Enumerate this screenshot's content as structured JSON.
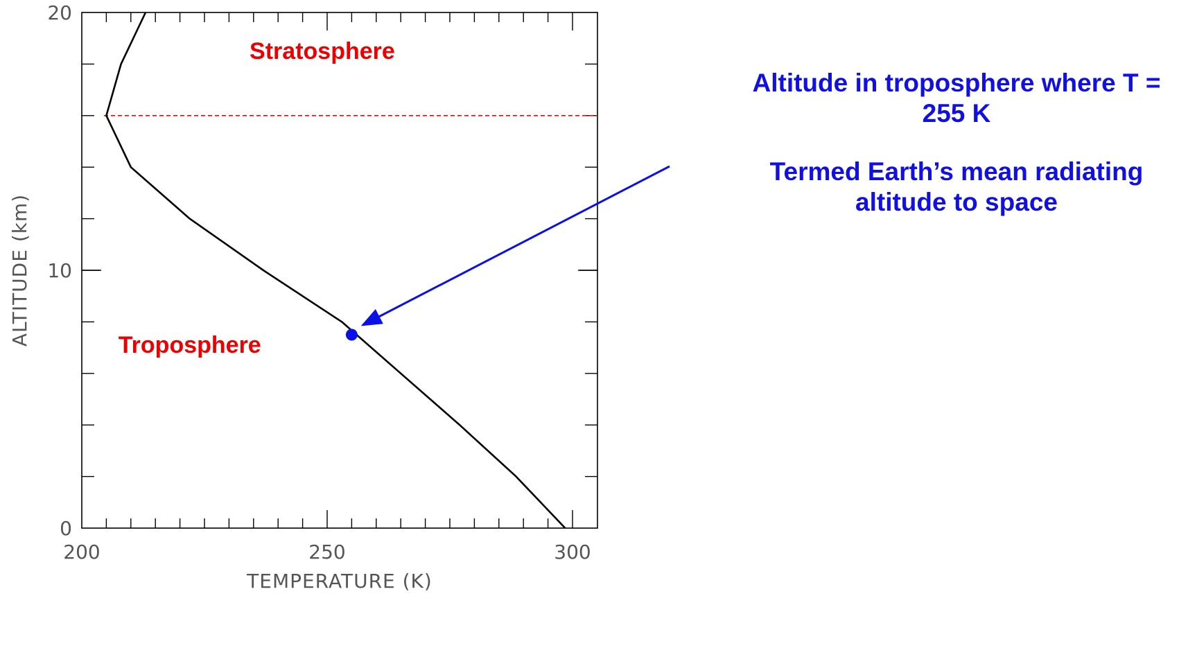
{
  "chart_data": {
    "type": "line",
    "xlabel": "TEMPERATURE (K)",
    "ylabel": "ALTITUDE (km)",
    "xlim": [
      200,
      305
    ],
    "ylim": [
      0,
      20
    ],
    "x_ticks": [
      200,
      250,
      300
    ],
    "y_ticks": [
      0,
      10,
      20
    ],
    "grid": false,
    "series": [
      {
        "color": "#000000",
        "points": [
          {
            "x": 298.5,
            "y": 0
          },
          {
            "x": 288.5,
            "y": 2
          },
          {
            "x": 277,
            "y": 4
          },
          {
            "x": 265,
            "y": 6
          },
          {
            "x": 253,
            "y": 8
          },
          {
            "x": 237,
            "y": 10
          },
          {
            "x": 222,
            "y": 12
          },
          {
            "x": 210,
            "y": 14
          },
          {
            "x": 205,
            "y": 16
          },
          {
            "x": 208,
            "y": 18
          },
          {
            "x": 213,
            "y": 20
          }
        ]
      }
    ],
    "tropopause_line": {
      "y": 16,
      "color": "#ff0000",
      "style": "dashed"
    },
    "marker": {
      "x": 255,
      "y": 7.5,
      "color": "#0a10e6"
    },
    "region_labels": [
      {
        "text": "Stratosphere",
        "x": 249,
        "y": 18.2,
        "color": "#ee0000"
      },
      {
        "text": "Troposphere",
        "x": 222,
        "y": 6.8,
        "color": "#ee0000"
      }
    ],
    "annotations": [
      "Altitude in troposphere where T = 255 K",
      "Termed Earth’s mean radiating altitude to space"
    ],
    "annotation_color": "#1010e0"
  }
}
